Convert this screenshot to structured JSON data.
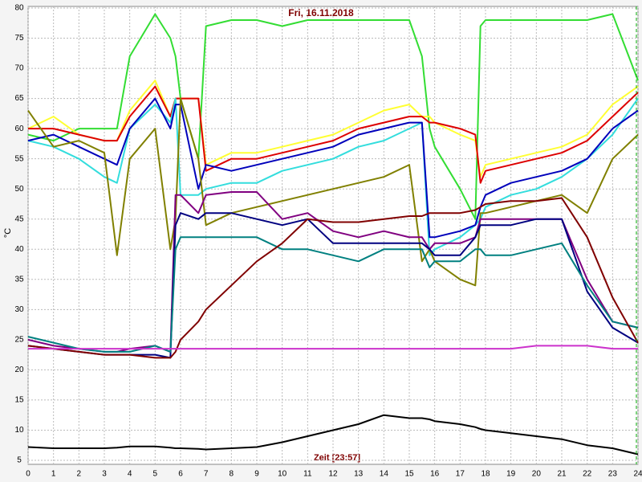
{
  "chart_data": {
    "type": "line",
    "title": "Fri, 16.11.2018",
    "ylabel": "°C",
    "xlabel": "Zeit [23:57]",
    "x": [
      0,
      1,
      2,
      3,
      3.5,
      4,
      5,
      5.6,
      5.8,
      6,
      6.7,
      7,
      8,
      9,
      10,
      11,
      12,
      13,
      14,
      15,
      15.5,
      15.8,
      16,
      17,
      17.6,
      17.8,
      18,
      19,
      20,
      21,
      22,
      23,
      24
    ],
    "xlim": [
      0,
      24
    ],
    "ylim": [
      5,
      80
    ],
    "xticks": [
      0,
      1,
      2,
      3,
      4,
      5,
      6,
      7,
      8,
      9,
      10,
      11,
      12,
      13,
      14,
      15,
      16,
      17,
      18,
      19,
      20,
      21,
      22,
      23,
      24
    ],
    "yticks": [
      5,
      10,
      15,
      20,
      25,
      30,
      35,
      40,
      45,
      50,
      55,
      60,
      65,
      70,
      75,
      80
    ],
    "grid": true,
    "series": [
      {
        "color": "#33dd33",
        "values": [
          59,
          58,
          60,
          60,
          60,
          72,
          79,
          75,
          72,
          65,
          55,
          77,
          78,
          78,
          77,
          78,
          78,
          78,
          78,
          78,
          72,
          60,
          57,
          50,
          45,
          77,
          78,
          78,
          78,
          78,
          78,
          79,
          68
        ]
      },
      {
        "color": "#ffff33",
        "values": [
          60,
          62,
          59,
          58,
          58,
          63,
          68,
          62,
          65,
          65,
          65,
          54,
          56,
          56,
          57,
          58,
          59,
          61,
          63,
          64,
          62,
          62,
          61,
          59,
          58,
          52,
          54,
          55,
          56,
          57,
          59,
          64,
          67
        ]
      },
      {
        "color": "#dd0000",
        "values": [
          60,
          60,
          59,
          58,
          58,
          62,
          67,
          62,
          65,
          65,
          65,
          53,
          55,
          55,
          56,
          57,
          58,
          60,
          61,
          62,
          62,
          61,
          61,
          60,
          59,
          51,
          53,
          54,
          55,
          56,
          58,
          62,
          66
        ]
      },
      {
        "color": "#33dddd",
        "values": [
          58,
          57,
          55,
          52,
          51,
          60,
          64,
          61,
          65,
          49,
          49,
          50,
          51,
          51,
          53,
          54,
          55,
          57,
          58,
          60,
          61,
          39,
          40,
          42,
          44,
          45,
          47,
          49,
          50,
          52,
          55,
          59,
          65
        ]
      },
      {
        "color": "#0000bb",
        "values": [
          58,
          59,
          57,
          55,
          54,
          60,
          65,
          60,
          64,
          64,
          50,
          54,
          53,
          54,
          55,
          56,
          57,
          59,
          60,
          61,
          61,
          42,
          42,
          43,
          44,
          47,
          49,
          51,
          52,
          53,
          55,
          60,
          63
        ]
      },
      {
        "color": "#808000",
        "values": [
          63,
          57,
          58,
          56,
          39,
          55,
          60,
          40,
          45,
          65,
          55,
          44,
          46,
          47,
          48,
          49,
          50,
          51,
          52,
          54,
          38,
          40,
          38,
          35,
          34,
          46,
          46,
          47,
          48,
          49,
          46,
          55,
          59
        ]
      },
      {
        "color": "#800080",
        "values": [
          25,
          24,
          23.5,
          23,
          23,
          23.5,
          24,
          23,
          49,
          49,
          46,
          49,
          49.5,
          49.5,
          45,
          46,
          43,
          42,
          43,
          42,
          42,
          40,
          41,
          41,
          42,
          45,
          45,
          45,
          45,
          45,
          35,
          28,
          27
        ]
      },
      {
        "color": "#000080",
        "values": [
          24,
          23.5,
          23,
          22.5,
          22.5,
          22.5,
          22.5,
          22,
          44,
          46,
          45,
          46,
          46,
          45,
          44,
          45,
          41,
          41,
          41,
          41,
          41,
          40,
          39,
          39,
          42,
          44,
          44,
          44,
          45,
          45,
          33,
          27,
          24.5
        ]
      },
      {
        "color": "#008080",
        "values": [
          25.5,
          24.5,
          23.5,
          23,
          23,
          23,
          24,
          23,
          40,
          42,
          42,
          42,
          42,
          42,
          40,
          40,
          39,
          38,
          40,
          40,
          40,
          37,
          38,
          38,
          40,
          40,
          39,
          39,
          40,
          41,
          34,
          28,
          27
        ]
      },
      {
        "color": "#800000",
        "values": [
          24,
          23.5,
          23,
          22.5,
          22.5,
          22.5,
          22,
          22,
          23,
          25,
          28,
          30,
          34,
          38,
          41,
          45,
          44.5,
          44.5,
          45,
          45.5,
          45.5,
          46,
          46,
          46,
          46.5,
          47,
          47.5,
          48,
          48,
          48.5,
          42,
          32,
          24.5
        ]
      },
      {
        "color": "#cc33cc",
        "values": [
          23.5,
          23.5,
          23.5,
          23.5,
          23.5,
          23.5,
          23.5,
          23.5,
          23.5,
          23.5,
          23.5,
          23.5,
          23.5,
          23.5,
          23.5,
          23.5,
          23.5,
          23.5,
          23.5,
          23.5,
          23.5,
          23.5,
          23.5,
          23.5,
          23.5,
          23.5,
          23.5,
          23.5,
          24,
          24,
          24,
          23.5,
          23.5
        ]
      },
      {
        "color": "#000000",
        "values": [
          7.2,
          7,
          7,
          7,
          7.1,
          7.3,
          7.3,
          7.1,
          7,
          7,
          6.9,
          6.8,
          7,
          7.2,
          8,
          9,
          10,
          11,
          12.5,
          12,
          12,
          11.8,
          11.5,
          11,
          10.5,
          10.2,
          10,
          9.5,
          9,
          8.5,
          7.5,
          7,
          6
        ]
      }
    ]
  }
}
